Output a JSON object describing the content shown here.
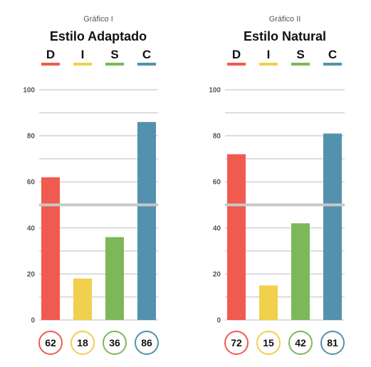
{
  "colors": {
    "D": "#f05a4f",
    "I": "#f0d04c",
    "S": "#7cb85a",
    "C": "#5391ae",
    "grid": "#bdbdbd",
    "midline": "#c8c8c8"
  },
  "chart_data": [
    {
      "type": "bar",
      "caption": "Gráfico I",
      "title": "Estilo Adaptado",
      "categories": [
        "D",
        "I",
        "S",
        "C"
      ],
      "values": [
        62,
        18,
        36,
        86
      ],
      "value_labels": [
        "62",
        "18",
        "36",
        "86"
      ],
      "ylim": [
        0,
        100
      ],
      "y_ticks": [
        0,
        20,
        40,
        60,
        80,
        100
      ],
      "y_tick_labels": [
        "0",
        "20",
        "40",
        "60",
        "80",
        "100"
      ],
      "grid": true,
      "midline": 50,
      "xlabel": "",
      "ylabel": ""
    },
    {
      "type": "bar",
      "caption": "Gráfico II",
      "title": "Estilo Natural",
      "categories": [
        "D",
        "I",
        "S",
        "C"
      ],
      "values": [
        72,
        15,
        42,
        81
      ],
      "value_labels": [
        "72",
        "15",
        "42",
        "81"
      ],
      "ylim": [
        0,
        100
      ],
      "y_ticks": [
        0,
        20,
        40,
        60,
        80,
        100
      ],
      "y_tick_labels": [
        "0",
        "20",
        "40",
        "60",
        "80",
        "100"
      ],
      "grid": true,
      "midline": 50,
      "xlabel": "",
      "ylabel": ""
    }
  ]
}
